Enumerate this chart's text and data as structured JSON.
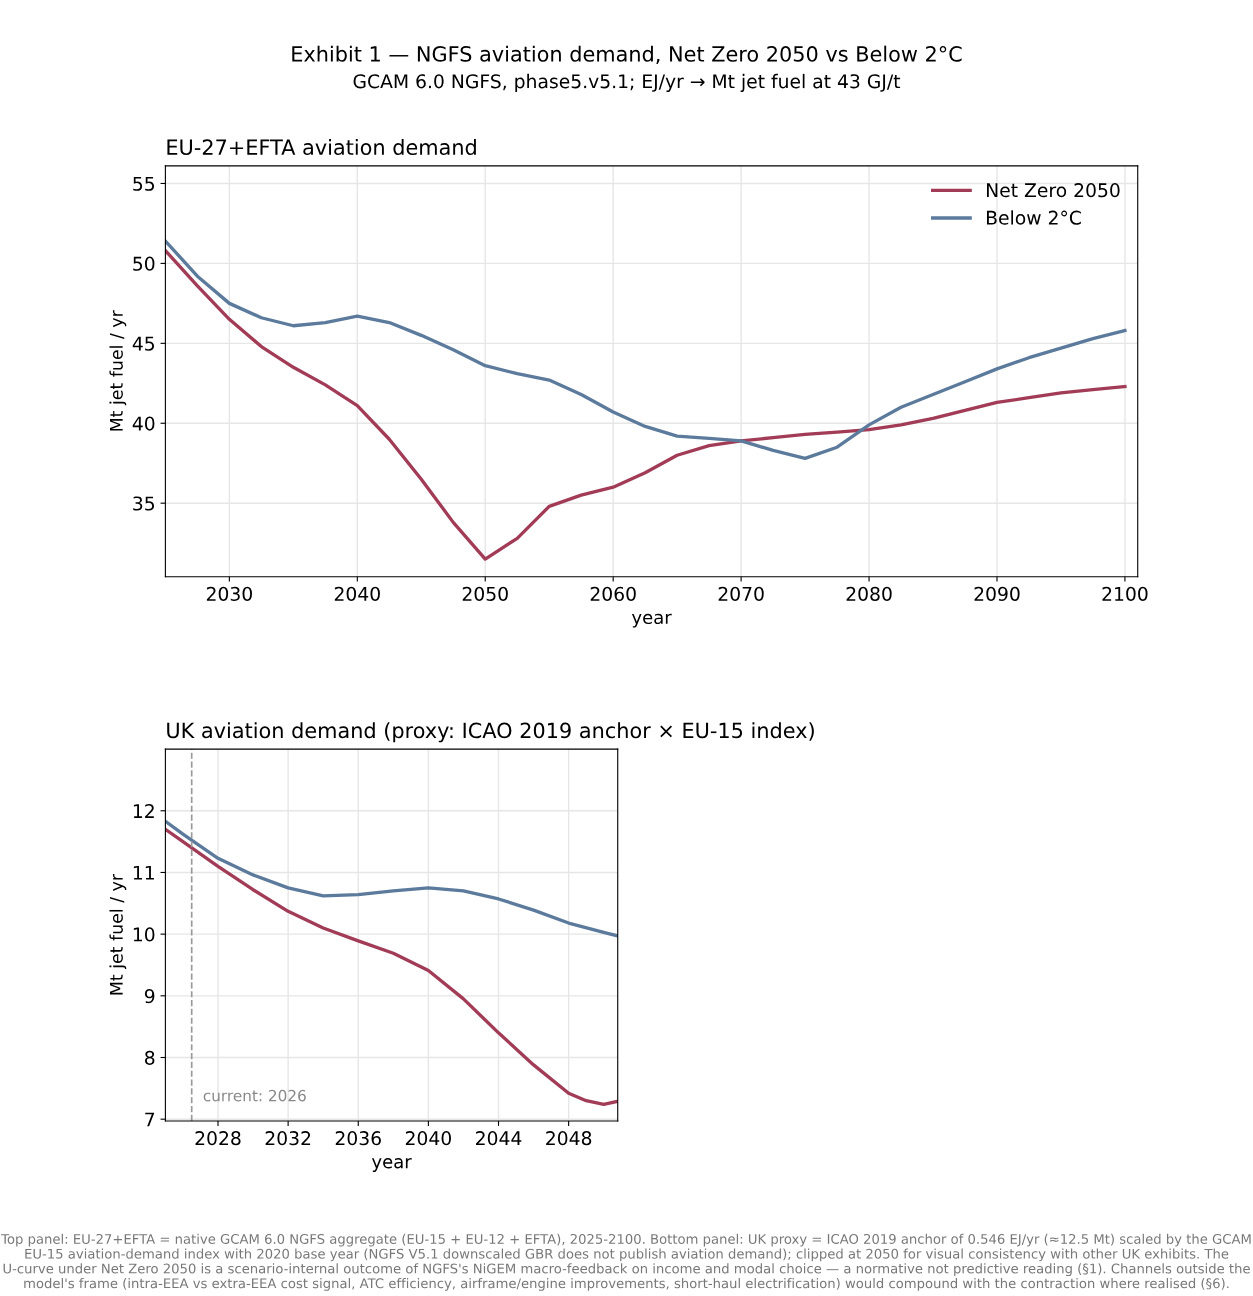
{
  "chart_data": [
    {
      "type": "other",
      "title": "Exhibit 1 — NGFS aviation demand, Net Zero 2050 vs Below 2°C",
      "subtitle": "GCAM 6.0 NGFS, phase5.v5.1; EJ/yr → Mt jet fuel at 43 GJ/t"
    },
    {
      "type": "line",
      "title": "EU-27+EFTA aviation demand",
      "xlabel": "year",
      "ylabel": "Mt jet fuel / yr",
      "xlim": [
        2025,
        2101
      ],
      "ylim": [
        30.4,
        56.1
      ],
      "xticks": [
        2030,
        2040,
        2050,
        2060,
        2070,
        2080,
        2090,
        2100
      ],
      "yticks": [
        35,
        40,
        45,
        50,
        55
      ],
      "grid": true,
      "legend": "top right",
      "x": [
        2025,
        2027.5,
        2030,
        2032.5,
        2035,
        2037.5,
        2040,
        2042.5,
        2045,
        2047.5,
        2050,
        2052.5,
        2055,
        2057.5,
        2060,
        2062.5,
        2065,
        2067.5,
        2070,
        2072.5,
        2075,
        2077.5,
        2080,
        2082.5,
        2085,
        2087.5,
        2090,
        2092.5,
        2095,
        2097.5,
        2100
      ],
      "series": [
        {
          "name": "Net Zero 2050",
          "color": "#a23b56",
          "values": [
            50.8,
            48.6,
            46.5,
            44.8,
            43.5,
            42.4,
            41.1,
            39.0,
            36.5,
            33.8,
            31.5,
            32.8,
            34.8,
            35.5,
            36.0,
            36.9,
            38.0,
            38.6,
            38.9,
            39.1,
            39.3,
            39.45,
            39.6,
            39.9,
            40.3,
            40.8,
            41.3,
            41.6,
            41.9,
            42.1,
            42.3
          ]
        },
        {
          "name": "Below 2°C",
          "color": "#5b7a9c",
          "values": [
            51.4,
            49.2,
            47.5,
            46.6,
            46.1,
            46.3,
            46.7,
            46.3,
            45.5,
            44.6,
            43.6,
            43.1,
            42.7,
            41.8,
            40.7,
            39.8,
            39.2,
            39.05,
            38.9,
            38.3,
            37.8,
            38.5,
            39.9,
            41.0,
            41.8,
            42.6,
            43.4,
            44.1,
            44.7,
            45.3,
            45.8
          ]
        }
      ]
    },
    {
      "type": "line",
      "title": "UK aviation demand (proxy: ICAO 2019 anchor × EU-15 index)",
      "xlabel": "year",
      "ylabel": "Mt jet fuel / yr",
      "xlim": [
        2025,
        2050.8
      ],
      "ylim": [
        6.97,
        13.0
      ],
      "xticks": [
        2028,
        2032,
        2036,
        2040,
        2044,
        2048
      ],
      "yticks": [
        7,
        8,
        9,
        10,
        11,
        12
      ],
      "grid": true,
      "series": [
        {
          "color": "#a23b56",
          "x": [
            2025,
            2026,
            2028,
            2030,
            2032,
            2034,
            2036,
            2038,
            2040,
            2042,
            2044,
            2046,
            2048,
            2049,
            2050,
            2050.8
          ],
          "values": [
            11.7,
            11.5,
            11.1,
            10.72,
            10.37,
            10.1,
            9.89,
            9.69,
            9.41,
            8.95,
            8.4,
            7.88,
            7.42,
            7.3,
            7.24,
            7.29
          ]
        },
        {
          "color": "#5b7a9c",
          "x": [
            2025,
            2026,
            2028,
            2030,
            2032,
            2034,
            2036,
            2038,
            2040,
            2042,
            2044,
            2046,
            2048,
            2050,
            2050.8
          ],
          "values": [
            11.83,
            11.62,
            11.23,
            10.96,
            10.75,
            10.62,
            10.64,
            10.7,
            10.75,
            10.7,
            10.57,
            10.39,
            10.18,
            10.03,
            9.97
          ]
        }
      ],
      "ref_lines": [
        {
          "axis": "x",
          "value": 2026.5,
          "label": "current: 2026",
          "color": "#999999",
          "line_style": "dashed"
        }
      ],
      "annotations": [
        "Top panel: EU-27+EFTA = native GCAM 6.0 NGFS aggregate (EU-15 + EU-12 + EFTA), 2025-2100. Bottom panel: UK proxy = ICAO 2019 anchor of 0.546 EJ/yr (≈12.5 Mt) scaled by the GCAM EU-15 aviation-demand index with 2020 base year (NGFS V5.1 downscaled GBR does not publish aviation demand); clipped at 2050 for visual consistency with other UK exhibits. The U-curve under Net Zero 2050 is a scenario-internal outcome of NGFS's NiGEM macro-feedback on income and modal choice — a normative not predictive reading (§1). Channels outside the model's frame (intra-EEA vs extra-EEA cost signal, ATC efficiency, airframe/engine improvements, short-haul electrification) would compound with the contraction where realised (§6)."
      ]
    }
  ]
}
